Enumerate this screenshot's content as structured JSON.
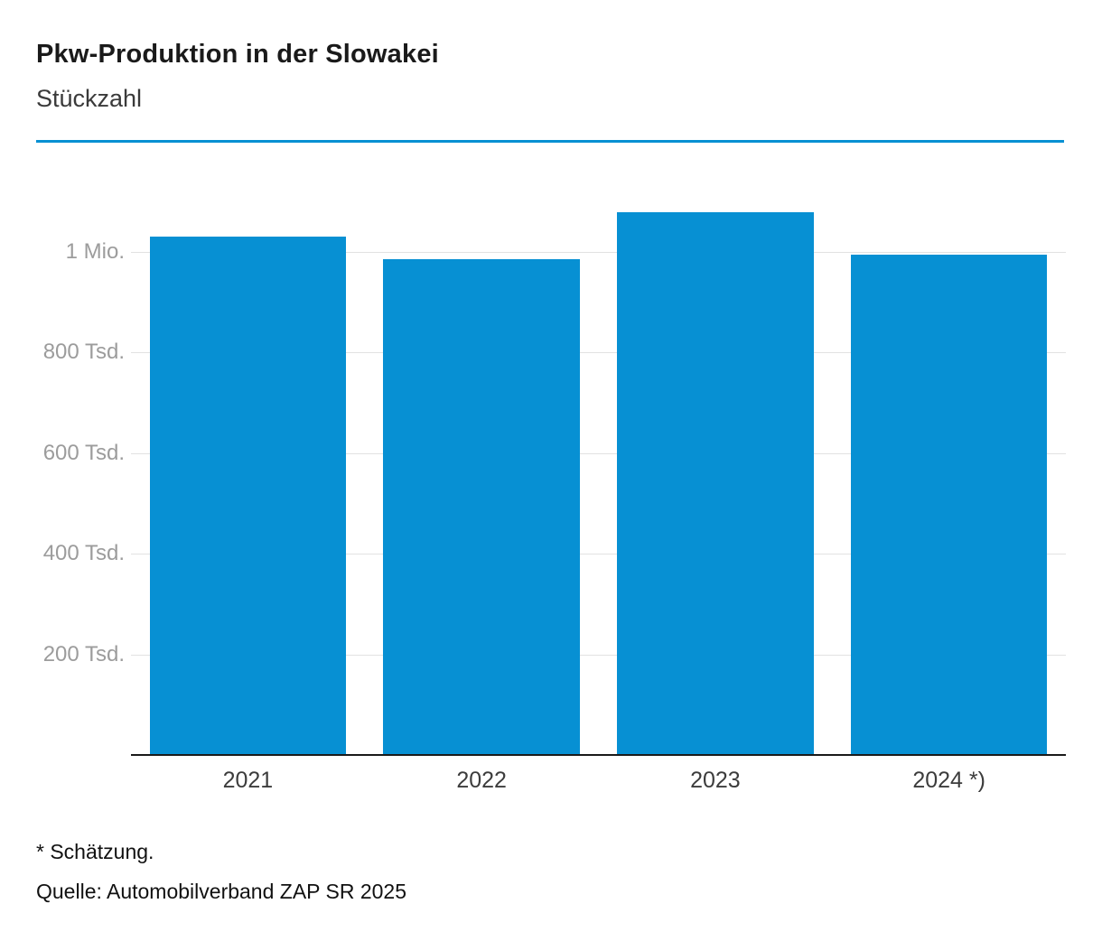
{
  "header": {
    "title": "Pkw-Produktion in der Slowakei",
    "subtitle": "Stückzahl"
  },
  "colors": {
    "accent": "#0790d3",
    "gridline": "#e2e2e2",
    "axis": "#1a1a1a",
    "ytick_text": "#9c9c9c"
  },
  "chart_data": {
    "type": "bar",
    "categories": [
      "2021",
      "2022",
      "2023",
      "2024 *)"
    ],
    "values": [
      1030000,
      985000,
      1080000,
      995000
    ],
    "title": "Pkw-Produktion in der Slowakei",
    "subtitle": "Stückzahl",
    "xlabel": "",
    "ylabel": "Stückzahl",
    "ylim": [
      0,
      1160000
    ],
    "yticks": [
      {
        "value": 200000,
        "label": "200 Tsd."
      },
      {
        "value": 400000,
        "label": "400 Tsd."
      },
      {
        "value": 600000,
        "label": "600 Tsd."
      },
      {
        "value": 800000,
        "label": "800 Tsd."
      },
      {
        "value": 1000000,
        "label": "1 Mio."
      }
    ],
    "grid": true,
    "legend": false,
    "bar_color": "#0790d3"
  },
  "footer": {
    "footnote": "* Schätzung.",
    "source": "Quelle: Automobilverband ZAP SR 2025"
  }
}
